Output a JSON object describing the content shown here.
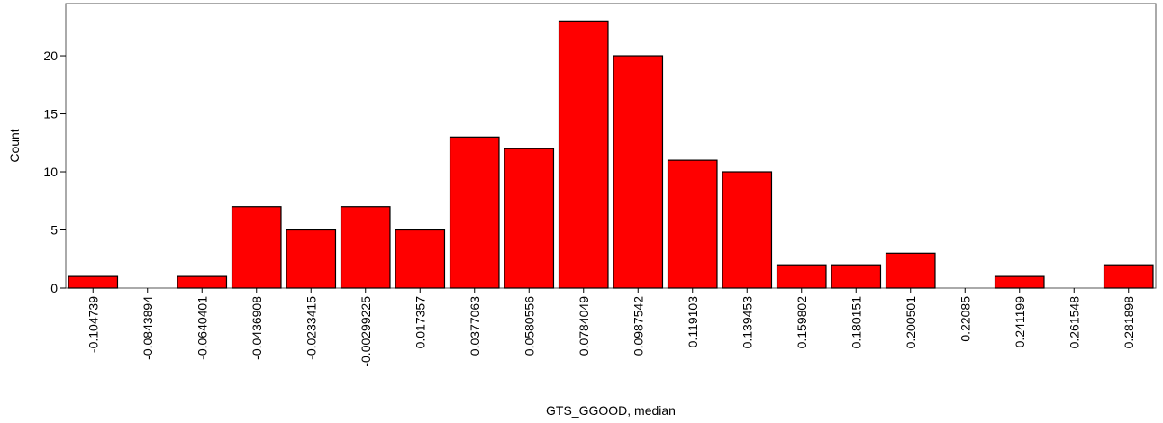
{
  "chart_data": {
    "type": "bar",
    "title": "",
    "xlabel": "GTS_GGOOD, median",
    "ylabel": "Count",
    "ylim": [
      0,
      24.5
    ],
    "yticks": [
      0,
      5,
      10,
      15,
      20
    ],
    "grid": false,
    "bar_color": "#ff0000",
    "categories": [
      "-0.104739",
      "-0.0843894",
      "-0.0640401",
      "-0.0436908",
      "-0.0233415",
      "-0.00299225",
      "0.017357",
      "0.0377063",
      "0.0580556",
      "0.0784049",
      "0.0987542",
      "0.119103",
      "0.139453",
      "0.159802",
      "0.180151",
      "0.200501",
      "0.22085",
      "0.241199",
      "0.261548",
      "0.281898"
    ],
    "values": [
      1,
      0,
      1,
      7,
      5,
      7,
      5,
      13,
      12,
      23,
      20,
      11,
      10,
      2,
      2,
      3,
      0,
      1,
      0,
      2
    ]
  }
}
